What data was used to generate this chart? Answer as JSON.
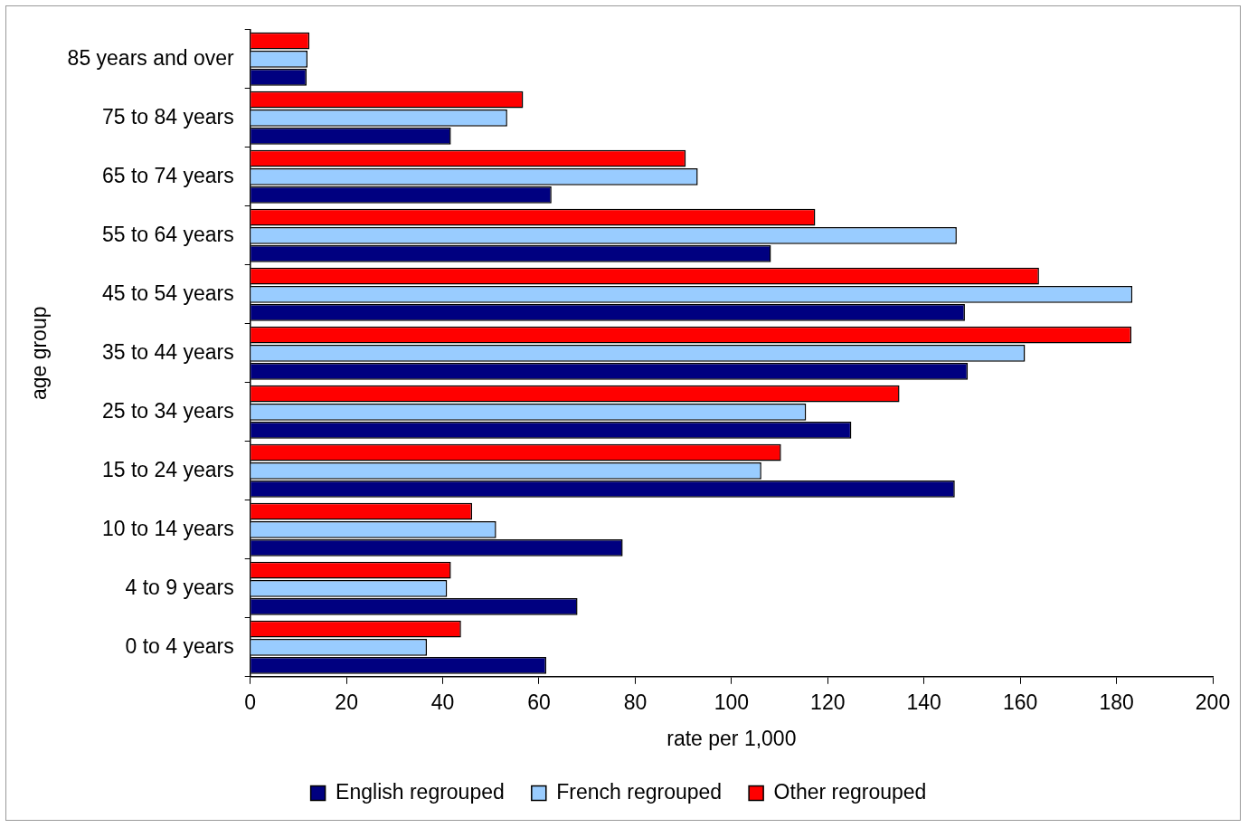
{
  "chart_data": {
    "type": "bar",
    "orientation": "horizontal",
    "xlabel": "rate per 1,000",
    "ylabel": "age group",
    "categories": [
      "85 years and over",
      "75 to 84 years",
      "65 to 74 years",
      "55 to 64 years",
      "45 to 54 years",
      "35 to 44 years",
      "25 to 34 years",
      "15 to 24 years",
      "10 to 14 years",
      "4 to 9 years",
      "0 to 4 years"
    ],
    "series": [
      {
        "name": "English regrouped",
        "color": "#000080",
        "values": [
          11.7,
          41.7,
          62.6,
          108.2,
          148.5,
          149.1,
          124.9,
          146.4,
          77.4,
          68,
          61.5
        ]
      },
      {
        "name": "French regrouped",
        "color": "#99ccff",
        "values": [
          11.9,
          53.4,
          93,
          146.8,
          183.3,
          161,
          115.5,
          106.2,
          51.1,
          40.9,
          36.7
        ]
      },
      {
        "name": "Other regrouped",
        "color": "#ff0000",
        "values": [
          12.3,
          56.7,
          90.5,
          117.4,
          163.9,
          183.1,
          134.9,
          110.3,
          46.1,
          41.7,
          43.8
        ]
      }
    ],
    "xlim": [
      0,
      200
    ],
    "xticks": [
      0,
      20,
      40,
      60,
      80,
      100,
      120,
      140,
      160,
      180,
      200
    ],
    "grid": false,
    "legend": "bottom"
  }
}
